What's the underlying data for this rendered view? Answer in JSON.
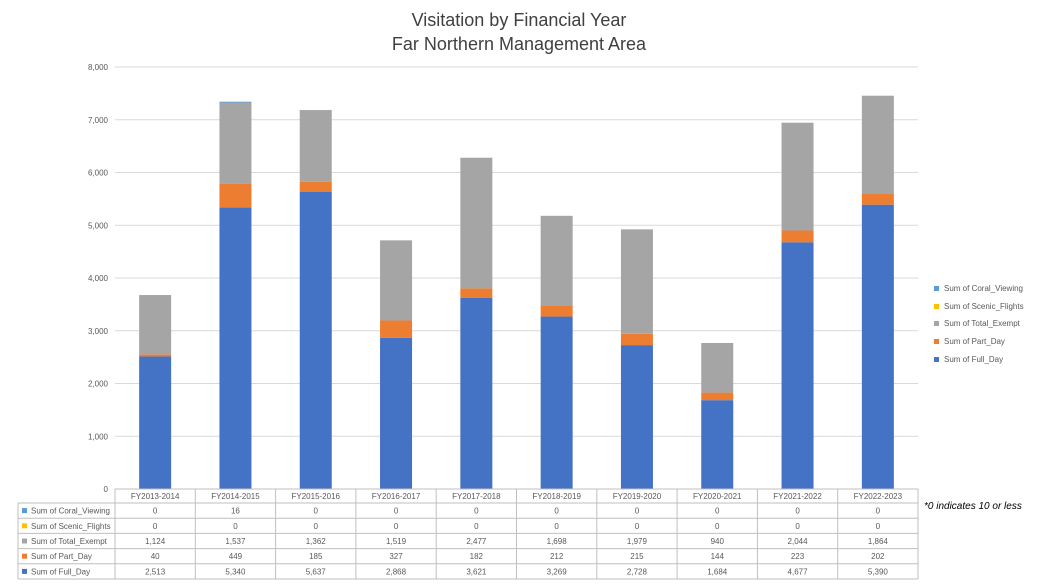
{
  "title_line1": "Visitation by Financial Year",
  "title_line2": "Far Northern Management Area",
  "footnote": "*0 indicates 10 or less",
  "chart_data": {
    "type": "bar",
    "stacked": true,
    "title": "Visitation by Financial Year\nFar Northern Management Area",
    "categories": [
      "FY2013-2014",
      "FY2014-2015",
      "FY2015-2016",
      "FY2016-2017",
      "FY2017-2018",
      "FY2018-2019",
      "FY2019-2020",
      "FY2020-2021",
      "FY2021-2022",
      "FY2022-2023"
    ],
    "ylim": [
      0,
      8000
    ],
    "yticks": [
      0,
      1000,
      2000,
      3000,
      4000,
      5000,
      6000,
      7000,
      8000
    ],
    "ytick_labels": [
      "0",
      "1,000",
      "2,000",
      "3,000",
      "4,000",
      "5,000",
      "6,000",
      "7,000",
      "8,000"
    ],
    "grid": true,
    "legend_position": "right",
    "stack_order": [
      "Sum of Full_Day",
      "Sum of Part_Day",
      "Sum of Total_Exempt",
      "Sum of Scenic_Flights",
      "Sum of Coral_Viewing"
    ],
    "series": [
      {
        "name": "Sum of Coral_Viewing",
        "color": "#5B9BD5",
        "values": [
          0,
          16,
          0,
          0,
          0,
          0,
          0,
          0,
          0,
          0
        ],
        "labels": [
          "0",
          "16",
          "0",
          "0",
          "0",
          "0",
          "0",
          "0",
          "0",
          "0"
        ]
      },
      {
        "name": "Sum of Scenic_Flights",
        "color": "#FFC000",
        "values": [
          0,
          0,
          0,
          0,
          0,
          0,
          0,
          0,
          0,
          0
        ],
        "labels": [
          "0",
          "0",
          "0",
          "0",
          "0",
          "0",
          "0",
          "0",
          "0",
          "0"
        ]
      },
      {
        "name": "Sum of Total_Exempt",
        "color": "#A5A5A5",
        "values": [
          1124,
          1537,
          1362,
          1519,
          2477,
          1698,
          1979,
          940,
          2044,
          1864
        ],
        "labels": [
          "1,124",
          "1,537",
          "1,362",
          "1,519",
          "2,477",
          "1,698",
          "1,979",
          "940",
          "2,044",
          "1,864"
        ]
      },
      {
        "name": "Sum of Part_Day",
        "color": "#ED7D31",
        "values": [
          40,
          449,
          185,
          327,
          182,
          212,
          215,
          144,
          223,
          202
        ],
        "labels": [
          "40",
          "449",
          "185",
          "327",
          "182",
          "212",
          "215",
          "144",
          "223",
          "202"
        ]
      },
      {
        "name": "Sum of Full_Day",
        "color": "#4472C4",
        "values": [
          2513,
          5340,
          5637,
          2868,
          3621,
          3269,
          2728,
          1684,
          4677,
          5390
        ],
        "labels": [
          "2,513",
          "5,340",
          "5,637",
          "2,868",
          "3,621",
          "3,269",
          "2,728",
          "1,684",
          "4,677",
          "5,390"
        ]
      }
    ]
  }
}
